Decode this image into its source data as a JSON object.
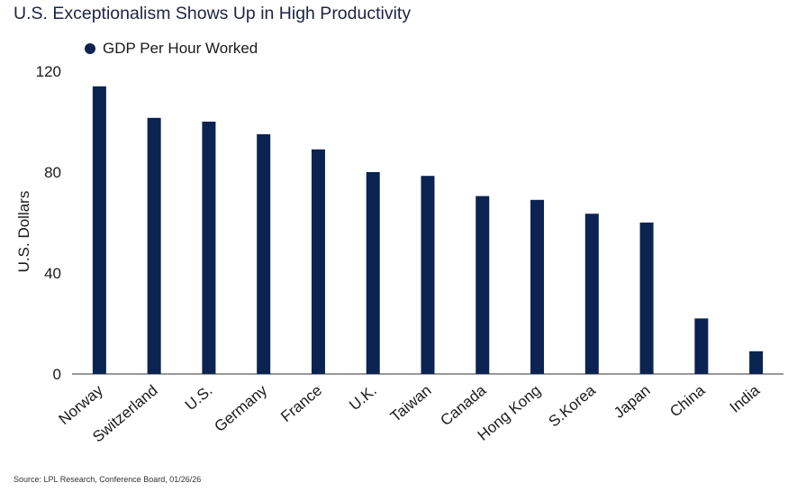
{
  "title": "U.S. Exceptionalism Shows Up in High Productivity",
  "source": "Source: LPL Research, Conference Board, 01/26/26",
  "colors": {
    "bar": "#0b2350",
    "axis": "#333333"
  },
  "chart_data": {
    "type": "bar",
    "title": "U.S. Exceptionalism Shows Up in High Productivity",
    "ylabel": "U.S. Dollars",
    "xlabel": "",
    "ylim": [
      0,
      120
    ],
    "yticks": [
      0,
      40,
      80,
      120
    ],
    "grid": false,
    "legend_position": "top-left",
    "categories": [
      "Norway",
      "Switzerland",
      "U.S.",
      "Germany",
      "France",
      "U.K.",
      "Taiwan",
      "Canada",
      "Hong Kong",
      "S.Korea",
      "Japan",
      "China",
      "India"
    ],
    "series": [
      {
        "name": "GDP Per Hour Worked",
        "color": "#0b2350",
        "values": [
          114,
          101.5,
          100,
          95,
          89,
          80,
          78.5,
          70.5,
          69,
          63.5,
          60,
          22,
          9
        ]
      }
    ]
  }
}
